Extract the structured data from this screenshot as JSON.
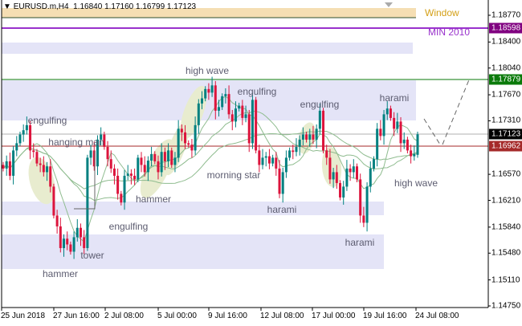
{
  "header": {
    "symbol": "EURUSD.m,H4",
    "ohlc": "1.16840 1.17160 1.16799 1.17123"
  },
  "colors": {
    "bull": "#008080",
    "bear": "#dc143c",
    "zone": "#e4e4f7",
    "window": "#f5deb3",
    "window_text": "#d4a017",
    "min2010": "#9932cc",
    "level_green": "#0a7a0a",
    "level_red": "#a52a2a",
    "ma": "#8fbc8f",
    "highlight": "#e8eccf"
  },
  "levels": {
    "window_label": "Window",
    "min2010_label": "MIN 2010",
    "min2010_price": "1.18598",
    "green_price": "1.17879",
    "bid_price": "1.17123",
    "red_price": "1.16962"
  },
  "price_axis": [
    "1.18770",
    "1.18400",
    "1.18040",
    "1.17670",
    "1.17310",
    "1.16570",
    "1.16210",
    "1.15840",
    "1.15480",
    "1.15110",
    "1.14750"
  ],
  "time_axis": [
    "25 Jun 2018",
    "27 Jun 16:00",
    "2 Jul 08:00",
    "5 Jul 00:00",
    "9 Jul 16:00",
    "12 Jul 08:00",
    "17 Jul 00:00",
    "19 Jul 16:00",
    "24 Jul 08:00"
  ],
  "patterns": [
    "high wave",
    "engulfing",
    "engulfing",
    "harami",
    "engulfing",
    "hanging man",
    "morning star",
    "hammer",
    "harami",
    "high wave",
    "engulfing",
    "tower",
    "hammer",
    "harami"
  ],
  "closes": [
    1.1665,
    1.1675,
    1.1655,
    1.169,
    1.17,
    1.1712,
    1.1718,
    1.1725,
    1.169,
    1.1688,
    1.1672,
    1.167,
    1.166,
    1.1668,
    1.164,
    1.16,
    1.1585,
    1.1555,
    1.1568,
    1.156,
    1.155,
    1.157,
    1.1583,
    1.157,
    1.1555,
    1.168,
    1.169,
    1.1668,
    1.1705,
    1.1712,
    1.1695,
    1.1678,
    1.1665,
    1.1655,
    1.163,
    1.1618,
    1.1655,
    1.1658,
    1.1655,
    1.165,
    1.168,
    1.167,
    1.166,
    1.1676,
    1.1685,
    1.1675,
    1.166,
    1.1688,
    1.1675,
    1.169,
    1.167,
    1.168,
    1.172,
    1.1715,
    1.17,
    1.1698,
    1.169,
    1.1725,
    1.1755,
    1.1762,
    1.1775,
    1.177,
    1.178,
    1.1745,
    1.175,
    1.1765,
    1.1768,
    1.174,
    1.173,
    1.1748,
    1.1752,
    1.1735,
    1.174,
    1.17,
    1.176,
    1.169,
    1.167,
    1.168,
    1.1682,
    1.1672,
    1.168,
    1.1665,
    1.163,
    1.166,
    1.168,
    1.169,
    1.1688,
    1.1695,
    1.1705,
    1.1712,
    1.1705,
    1.1712,
    1.1705,
    1.172,
    1.1745,
    1.169,
    1.168,
    1.165,
    1.166,
    1.1645,
    1.1625,
    1.164,
    1.1665,
    1.166,
    1.1668,
    1.165,
    1.16,
    1.159,
    1.164,
    1.1665,
    1.1678,
    1.172,
    1.171,
    1.174,
    1.1748,
    1.1735,
    1.172,
    1.173,
    1.17,
    1.1705,
    1.169,
    1.1682,
    1.1685,
    1.17123
  ],
  "last_candle": {
    "open": 1.1684,
    "high": 1.1716,
    "low": 1.16799,
    "close": 1.17123
  }
}
